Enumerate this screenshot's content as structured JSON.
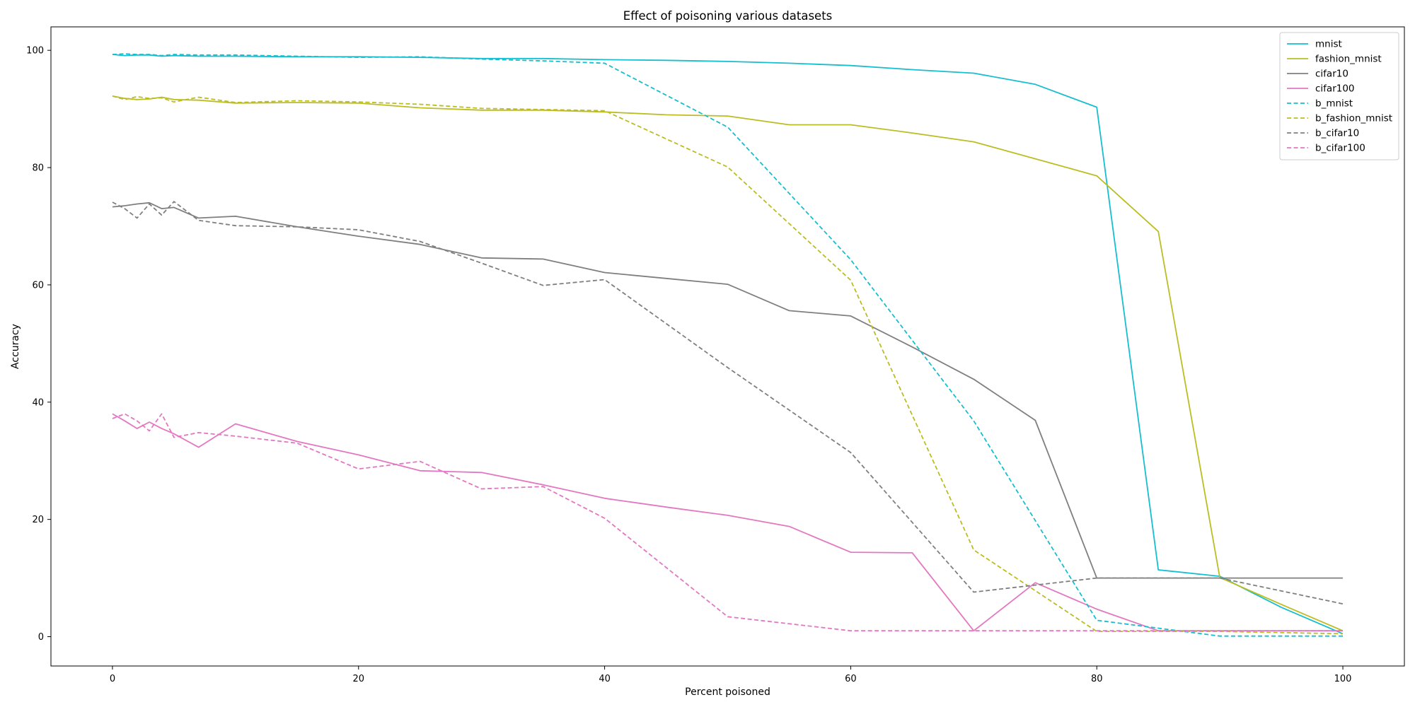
{
  "chart_data": {
    "type": "line",
    "title": "Effect of poisoning various datasets",
    "xlabel": "Percent poisoned",
    "ylabel": "Accuracy",
    "xlim": [
      -5,
      105
    ],
    "ylim": [
      -5,
      104
    ],
    "xticks": [
      0,
      20,
      40,
      60,
      80,
      100
    ],
    "yticks": [
      0,
      20,
      40,
      60,
      80,
      100
    ],
    "grid": false,
    "legend_position": "top-right",
    "series": [
      {
        "name": "mnist",
        "color": "#17becf",
        "style": "solid",
        "x": [
          0,
          1,
          2,
          3,
          4,
          5,
          7,
          10,
          15,
          20,
          25,
          30,
          35,
          40,
          45,
          50,
          55,
          60,
          65,
          70,
          75,
          80,
          85,
          90,
          95,
          100
        ],
        "y": [
          99.3,
          99.1,
          99.2,
          99.2,
          99.0,
          99.1,
          99.0,
          99.0,
          98.9,
          98.9,
          98.8,
          98.6,
          98.6,
          98.4,
          98.3,
          98.1,
          97.8,
          97.4,
          96.7,
          96.1,
          94.2,
          90.3,
          11.4,
          10.3,
          5.0,
          0.5
        ]
      },
      {
        "name": "fashion_mnist",
        "color": "#bcbd22",
        "style": "solid",
        "x": [
          0,
          1,
          2,
          3,
          4,
          5,
          7,
          10,
          15,
          20,
          25,
          30,
          35,
          40,
          45,
          50,
          55,
          60,
          65,
          70,
          75,
          80,
          85,
          90,
          95,
          100
        ],
        "y": [
          92.2,
          91.8,
          91.6,
          91.7,
          92.0,
          91.6,
          91.5,
          91.0,
          91.1,
          91.0,
          90.2,
          89.8,
          89.8,
          89.5,
          89.0,
          88.8,
          87.3,
          87.3,
          85.9,
          84.4,
          81.5,
          78.6,
          69.1,
          10.1,
          5.5,
          1.0
        ]
      },
      {
        "name": "cifar10",
        "color": "#7f7f7f",
        "style": "solid",
        "x": [
          0,
          1,
          2,
          3,
          4,
          5,
          7,
          10,
          15,
          20,
          25,
          30,
          35,
          40,
          45,
          50,
          55,
          60,
          65,
          70,
          75,
          80,
          85,
          90,
          95,
          100
        ],
        "y": [
          73.3,
          73.5,
          73.8,
          74.0,
          73.0,
          73.2,
          71.4,
          71.7,
          69.9,
          68.3,
          66.9,
          64.6,
          64.4,
          62.1,
          61.1,
          60.1,
          55.6,
          54.7,
          49.4,
          43.9,
          36.9,
          10.0,
          10.0,
          10.0,
          10.0,
          10.0
        ]
      },
      {
        "name": "cifar100",
        "color": "#e377c2",
        "style": "solid",
        "x": [
          0,
          1,
          2,
          3,
          4,
          5,
          7,
          10,
          15,
          20,
          25,
          30,
          35,
          40,
          45,
          50,
          55,
          60,
          65,
          70,
          75,
          80,
          85,
          90,
          95,
          100
        ],
        "y": [
          38.0,
          36.8,
          35.5,
          36.6,
          35.5,
          34.6,
          32.3,
          36.3,
          33.3,
          31.0,
          28.3,
          28.0,
          25.9,
          23.6,
          22.1,
          20.7,
          18.8,
          14.4,
          14.3,
          1.0,
          9.2,
          4.7,
          1.0,
          1.0,
          1.0,
          1.0
        ]
      },
      {
        "name": "b_mnist",
        "color": "#17becf",
        "style": "dashed",
        "x": [
          0,
          1,
          2,
          3,
          4,
          5,
          7,
          10,
          15,
          20,
          25,
          30,
          35,
          40,
          50,
          60,
          70,
          80,
          90,
          100
        ],
        "y": [
          99.3,
          99.4,
          99.3,
          99.3,
          99.1,
          99.3,
          99.2,
          99.2,
          99.0,
          98.8,
          98.9,
          98.5,
          98.2,
          97.8,
          86.9,
          64.3,
          36.8,
          2.8,
          0.1,
          0.1
        ]
      },
      {
        "name": "b_fashion_mnist",
        "color": "#bcbd22",
        "style": "dashed",
        "x": [
          0,
          1,
          2,
          3,
          4,
          5,
          7,
          10,
          15,
          20,
          25,
          30,
          35,
          40,
          50,
          60,
          70,
          80,
          90,
          100
        ],
        "y": [
          92.2,
          91.6,
          92.1,
          91.8,
          91.9,
          91.2,
          92.0,
          91.1,
          91.4,
          91.2,
          90.8,
          90.1,
          89.9,
          89.7,
          80.1,
          60.8,
          14.8,
          0.9,
          0.9,
          0.5
        ]
      },
      {
        "name": "b_cifar10",
        "color": "#7f7f7f",
        "style": "dashed",
        "x": [
          0,
          1,
          2,
          3,
          4,
          5,
          7,
          10,
          15,
          20,
          25,
          30,
          35,
          40,
          50,
          60,
          70,
          80,
          90,
          100
        ],
        "y": [
          74.1,
          73.0,
          71.4,
          73.8,
          71.9,
          74.2,
          71.0,
          70.1,
          69.9,
          69.4,
          67.4,
          63.7,
          59.9,
          60.9,
          45.9,
          31.4,
          7.6,
          10.0,
          10.0,
          5.6
        ]
      },
      {
        "name": "b_cifar100",
        "color": "#e377c2",
        "style": "dashed",
        "x": [
          0,
          1,
          2,
          3,
          4,
          5,
          7,
          10,
          15,
          20,
          25,
          30,
          35,
          40,
          50,
          60,
          70,
          80,
          90,
          100
        ],
        "y": [
          37.2,
          38.0,
          36.8,
          35.1,
          38.0,
          34.0,
          34.8,
          34.2,
          33.0,
          28.6,
          29.9,
          25.2,
          25.6,
          20.2,
          3.4,
          1.0,
          1.0,
          1.0,
          1.0,
          1.0
        ]
      }
    ]
  }
}
